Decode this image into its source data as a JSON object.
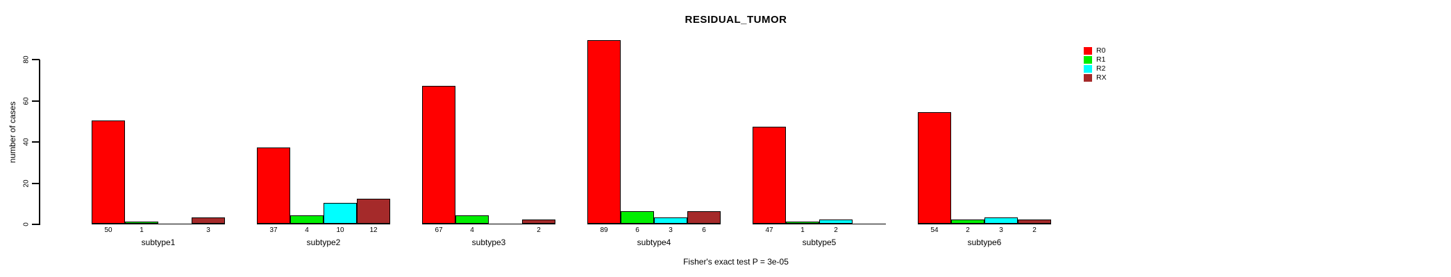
{
  "chart_data": {
    "type": "bar",
    "title": "RESIDUAL_TUMOR",
    "ylabel": "number of cases",
    "caption": "Fisher's exact test P = 3e-05",
    "categories": [
      "subtype1",
      "subtype2",
      "subtype3",
      "subtype4",
      "subtype5",
      "subtype6"
    ],
    "series": [
      {
        "name": "R0",
        "color": "#ff0000",
        "values": [
          50,
          37,
          67,
          89,
          47,
          54
        ]
      },
      {
        "name": "R1",
        "color": "#00ee00",
        "values": [
          1,
          4,
          4,
          6,
          1,
          2
        ]
      },
      {
        "name": "R2",
        "color": "#00ffff",
        "values": [
          0,
          10,
          0,
          3,
          2,
          3
        ]
      },
      {
        "name": "RX",
        "color": "#a52a2a",
        "values": [
          3,
          12,
          2,
          6,
          0,
          2
        ]
      }
    ],
    "bar_value_labels": [
      [
        "50",
        "1",
        "",
        "3"
      ],
      [
        "37",
        "4",
        "10",
        "12"
      ],
      [
        "67",
        "4",
        "",
        "2"
      ],
      [
        "89",
        "6",
        "3",
        "6"
      ],
      [
        "47",
        "1",
        "2",
        ""
      ],
      [
        "54",
        "2",
        "3",
        "2"
      ]
    ],
    "y_ticks": [
      0,
      20,
      40,
      60,
      80
    ],
    "ylim": [
      0,
      89
    ],
    "grid": false,
    "legend_position": "right",
    "legend_entries": [
      "R0",
      "R1",
      "R2",
      "RX"
    ],
    "colors": {
      "axis": "#000000",
      "text": "#000000",
      "background": "#ffffff"
    }
  }
}
